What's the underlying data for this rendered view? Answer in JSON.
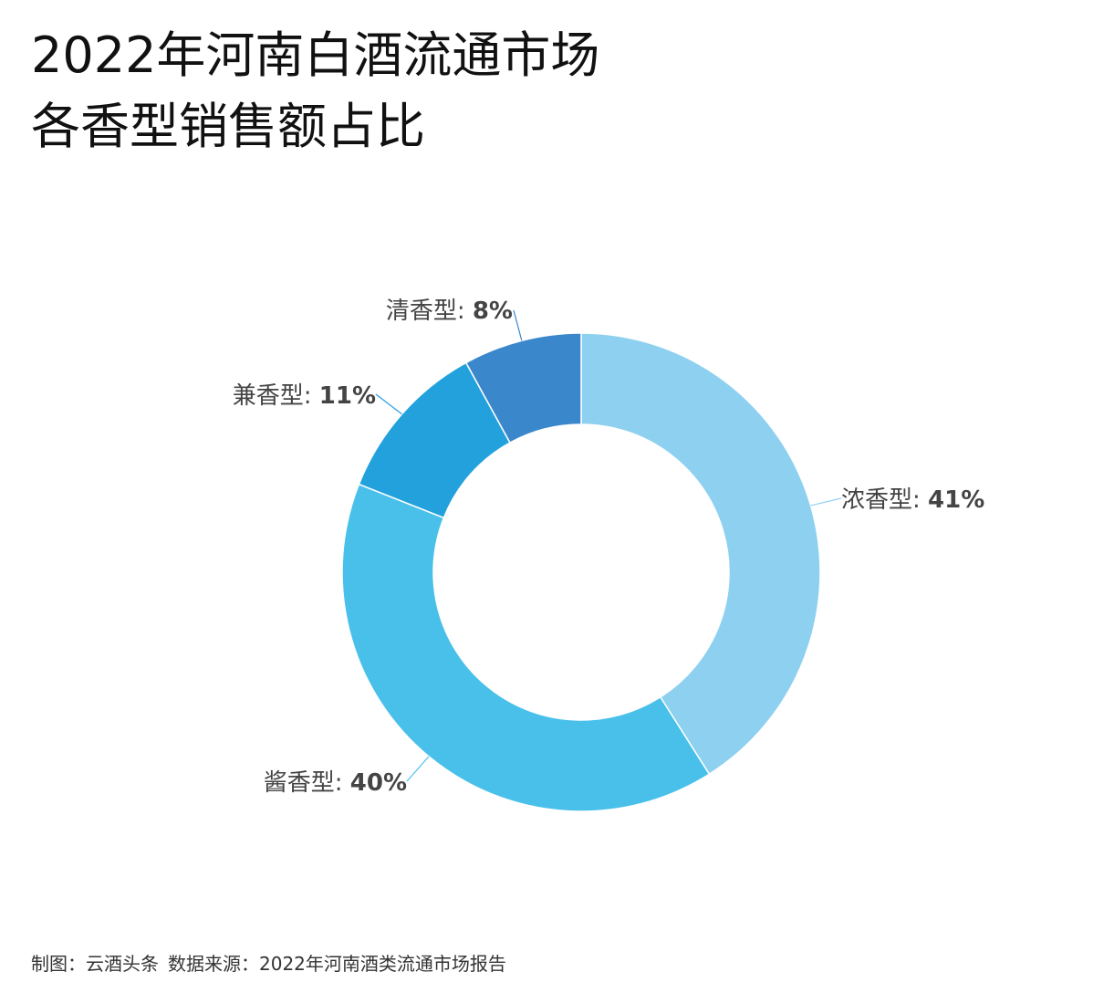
{
  "title_lines": [
    "2022年河南白酒流通市场",
    "各香型销售额占比"
  ],
  "footer": {
    "credit": "制图：云酒头条",
    "source": "数据来源：2022年河南酒类流通市场报告"
  },
  "chart_data": {
    "type": "pie",
    "variant": "donut",
    "title": "2022年河南白酒流通市场各香型销售额占比",
    "unit": "%",
    "slices": [
      {
        "label": "浓香型",
        "value": 41,
        "color": "#8dd0f0"
      },
      {
        "label": "酱香型",
        "value": 40,
        "color": "#49c0ea"
      },
      {
        "label": "兼香型",
        "value": 11,
        "color": "#23a1dd"
      },
      {
        "label": "清香型",
        "value": 8,
        "color": "#3a87cc"
      }
    ]
  }
}
